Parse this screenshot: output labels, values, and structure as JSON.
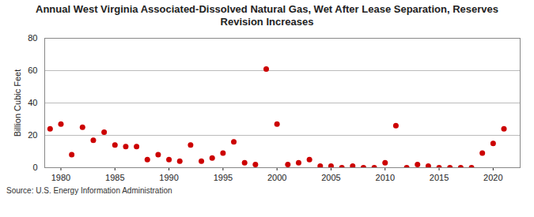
{
  "chart_data": {
    "type": "scatter",
    "title": "Annual West Virginia Associated-Dissolved Natural Gas, Wet After Lease Separation, Reserves Revision Increases",
    "source": "Source: U.S. Energy Information Administration",
    "y_label": "Billion Cubic Feet",
    "x": [
      1979,
      1980,
      1981,
      1982,
      1983,
      1984,
      1985,
      1986,
      1987,
      1988,
      1989,
      1990,
      1991,
      1992,
      1993,
      1994,
      1995,
      1996,
      1997,
      1998,
      1999,
      2000,
      2001,
      2002,
      2003,
      2004,
      2005,
      2006,
      2007,
      2008,
      2009,
      2010,
      2011,
      2012,
      2013,
      2014,
      2015,
      2016,
      2017,
      2018,
      2019,
      2020,
      2021
    ],
    "values": [
      24,
      27,
      8,
      25,
      17,
      22,
      14,
      13,
      13,
      5,
      8,
      5,
      4,
      14,
      4,
      6,
      9,
      16,
      3,
      2,
      61,
      27,
      2,
      3,
      5,
      1,
      1,
      0,
      1,
      0,
      0,
      3,
      26,
      0,
      2,
      1,
      0,
      0,
      0,
      0,
      9,
      15,
      24
    ],
    "color": "#cc0000",
    "marker": "circle",
    "xlim": [
      1978.5,
      2022.5
    ],
    "xticks": [
      1980,
      1985,
      1990,
      1995,
      2000,
      2005,
      2010,
      2015,
      2020
    ],
    "ylim": [
      0,
      80
    ],
    "yticks": [
      0,
      20,
      40,
      60,
      80
    ],
    "grid": true
  }
}
